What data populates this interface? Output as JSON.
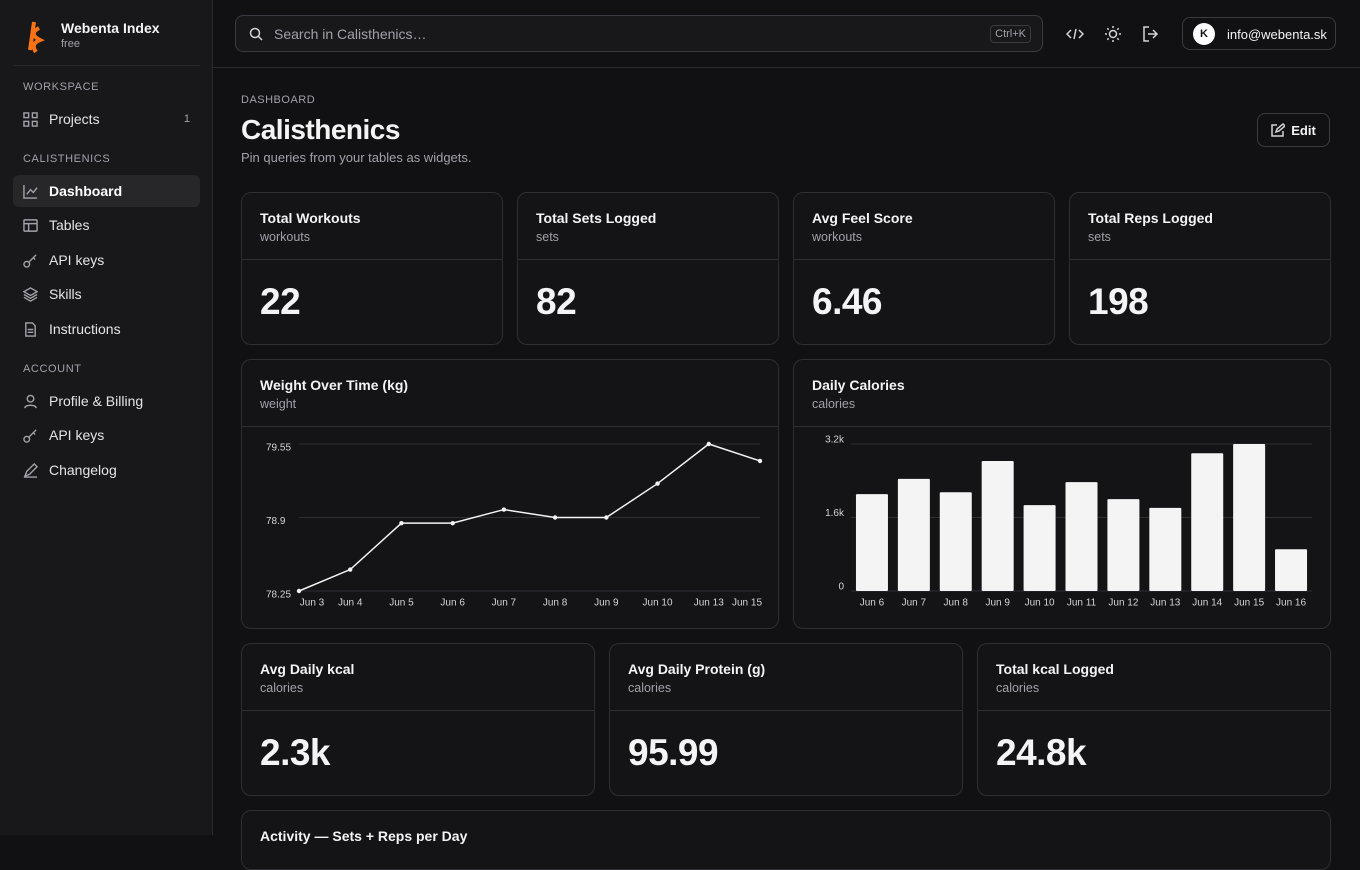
{
  "sidebar": {
    "brand": "Webenta Index",
    "plan": "free",
    "sections": [
      {
        "label": "WORKSPACE",
        "items": [
          {
            "label": "Projects",
            "badge": 1
          }
        ]
      },
      {
        "label": "CALISTHENICS",
        "items": [
          {
            "label": "Dashboard"
          },
          {
            "label": "Tables"
          },
          {
            "label": "API keys"
          },
          {
            "label": "Skills"
          },
          {
            "label": "Instructions"
          }
        ]
      },
      {
        "label": "ACCOUNT",
        "items": [
          {
            "label": "Profile & Billing"
          },
          {
            "label": "API keys"
          },
          {
            "label": "Changelog"
          }
        ]
      }
    ]
  },
  "topbar": {
    "search_placeholder": "Search in Calisthenics…",
    "shortcut": "Ctrl+K",
    "avatar": "K",
    "email": "info@webenta.sk"
  },
  "header": {
    "breadcrumb": "DASHBOARD",
    "title": "Calisthenics",
    "subtitle": "Pin queries from your tables as widgets.",
    "edit": "Edit"
  },
  "stats": [
    {
      "title": "Total Workouts",
      "subtitle": "workouts",
      "value": 22
    },
    {
      "title": "Total Sets Logged",
      "subtitle": "sets",
      "value": 82
    },
    {
      "title": "Avg Feel Score",
      "subtitle": "workouts",
      "value": 6.46
    },
    {
      "title": "Total Reps Logged",
      "subtitle": "sets",
      "value": 198
    },
    {
      "title": "Avg Daily kcal",
      "subtitle": "calories",
      "value": "2.3k"
    },
    {
      "title": "Avg Daily Protein (g)",
      "subtitle": "calories",
      "value": 95.99
    },
    {
      "title": "Total kcal Logged",
      "subtitle": "calories",
      "value": "24.8k"
    }
  ],
  "chart_data": [
    {
      "type": "line",
      "title": "Weight Over Time (kg)",
      "subtitle": "weight",
      "color": "#f4f4f5",
      "grid": true,
      "categories": [
        "Jun 3",
        "Jun 4",
        "Jun 5",
        "Jun 6",
        "Jun 7",
        "Jun 8",
        "Jun 9",
        "Jun 10",
        "Jun 13",
        "Jun 15"
      ],
      "values": [
        78.25,
        78.44,
        78.85,
        78.85,
        78.97,
        78.9,
        78.9,
        79.2,
        79.55,
        79.4
      ],
      "ylim": [
        78.25,
        79.55
      ],
      "yticks": [
        78.25,
        78.9,
        79.55
      ]
    },
    {
      "type": "bar",
      "title": "Daily Calories",
      "subtitle": "calories",
      "color": "#f4f4f5",
      "grid": true,
      "categories": [
        "Jun 6",
        "Jun 7",
        "Jun 8",
        "Jun 9",
        "Jun 10",
        "Jun 11",
        "Jun 12",
        "Jun 13",
        "Jun 14",
        "Jun 15",
        "Jun 16"
      ],
      "values": [
        2110,
        2440,
        2150,
        2830,
        1870,
        2370,
        2000,
        1810,
        3000,
        3200,
        910
      ],
      "ylim": [
        0,
        3200
      ],
      "yticks": [
        0,
        {
          "value": 1600,
          "label": "1.6k"
        },
        {
          "value": 3200,
          "label": "3.2k"
        }
      ]
    }
  ],
  "activity": {
    "title": "Activity — Sets + Reps per Day"
  }
}
